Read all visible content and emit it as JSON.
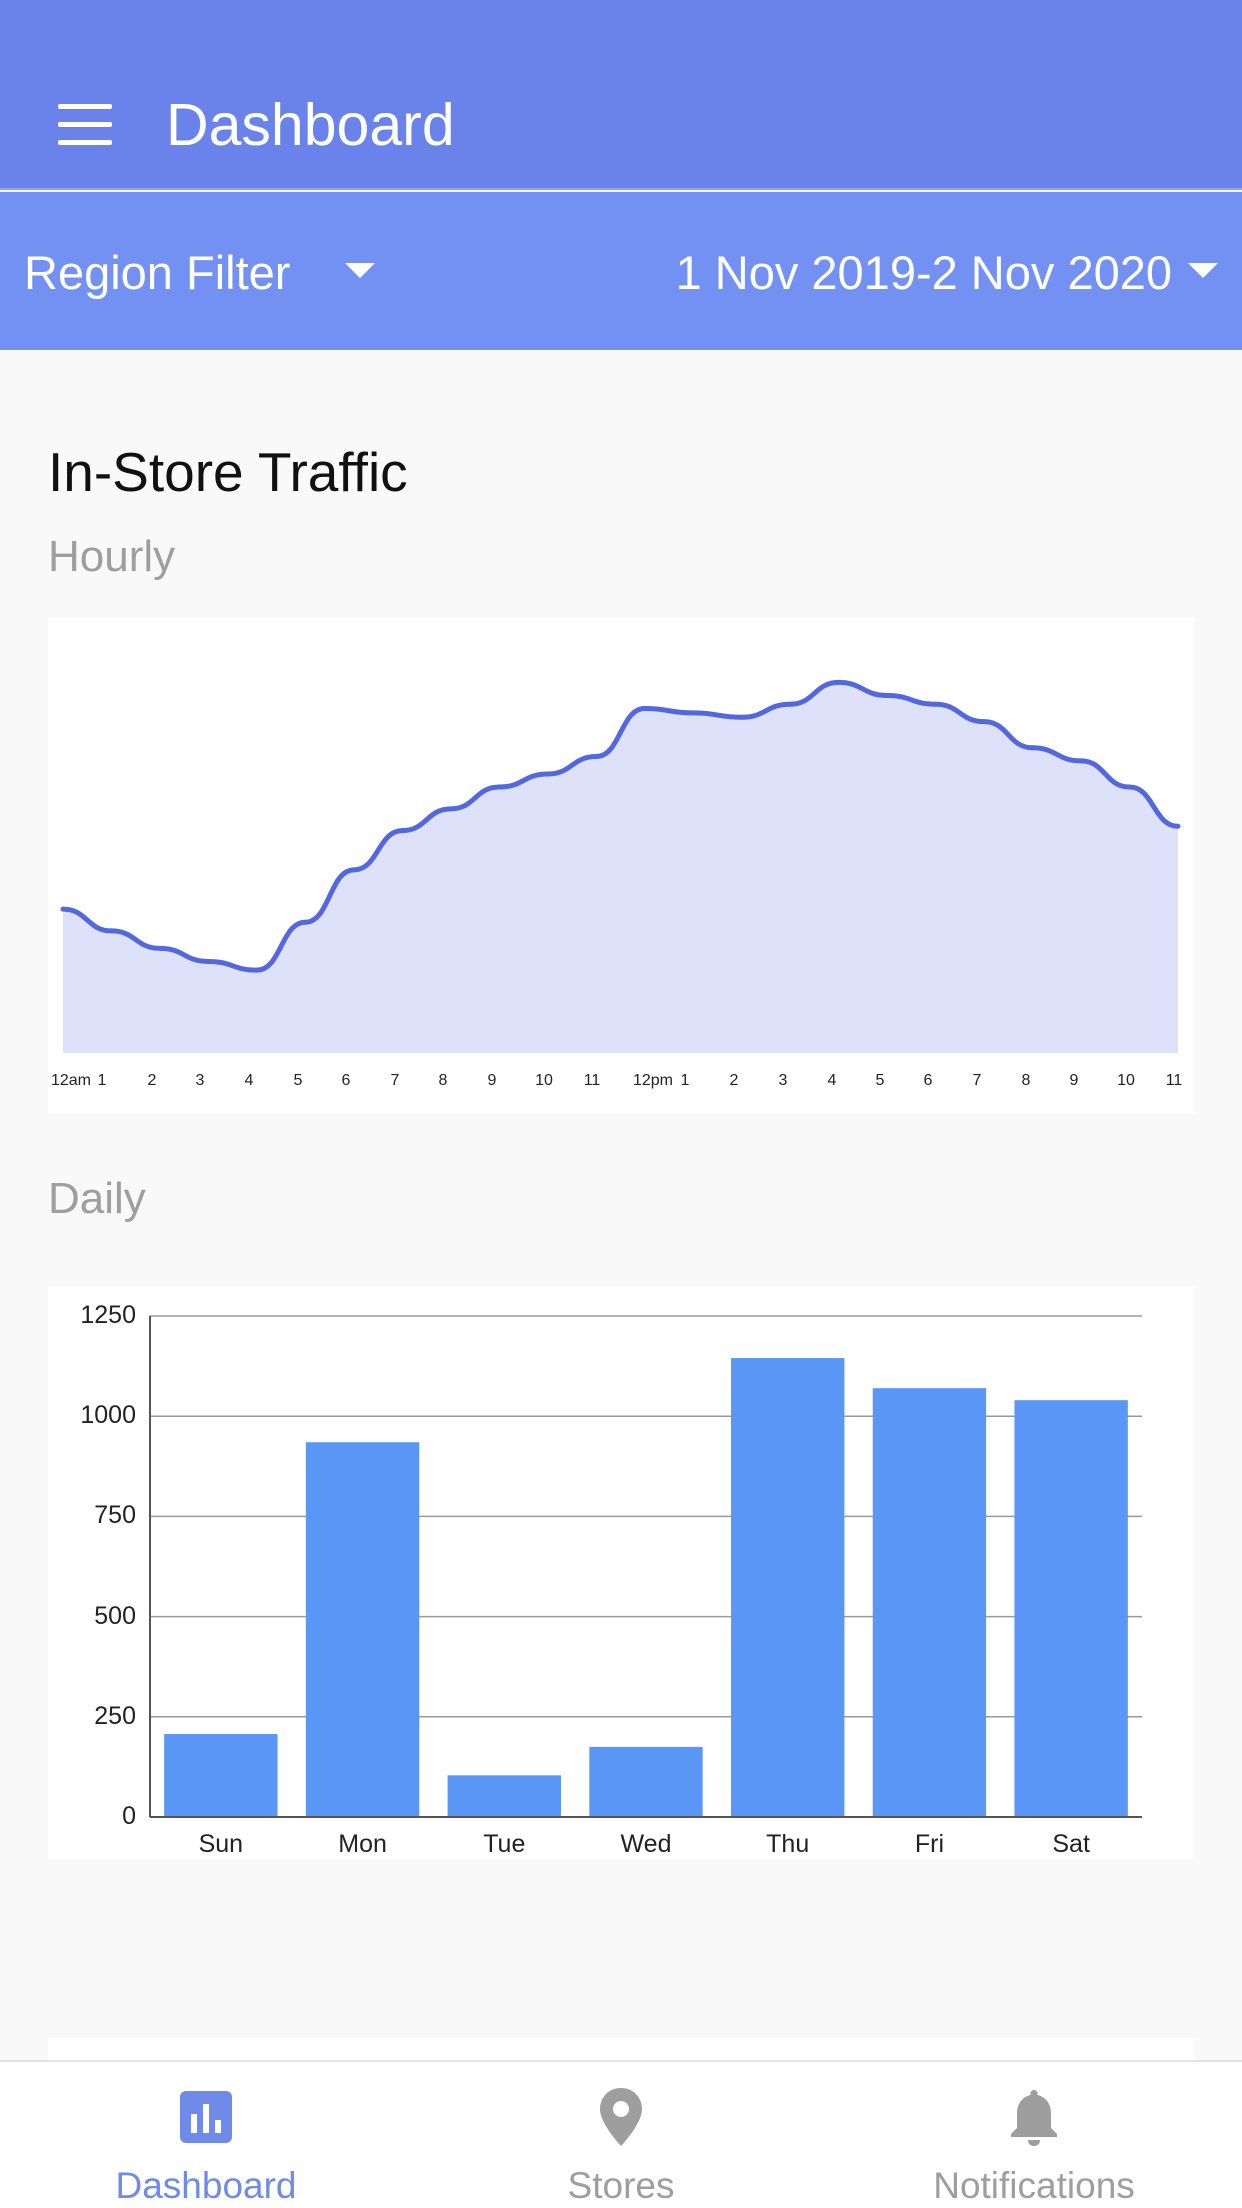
{
  "header": {
    "title": "Dashboard",
    "menu_icon": "hamburger-menu-icon",
    "background_color": "#6983eb"
  },
  "filters": {
    "region_label": "Region Filter",
    "date_range": "1 Nov 2019-2 Nov 2020",
    "background_color": "#7390f3"
  },
  "section": {
    "title": "In-Store Traffic",
    "hourly_label": "Hourly",
    "daily_label": "Daily"
  },
  "chart_data": [
    {
      "type": "area",
      "title": "Hourly",
      "x": [
        "12am",
        "1",
        "2",
        "3",
        "4",
        "5",
        "6",
        "7",
        "8",
        "9",
        "10",
        "11",
        "12pm",
        "1",
        "2",
        "3",
        "4",
        "5",
        "6",
        "7",
        "8",
        "9",
        "10",
        "11"
      ],
      "values": [
        33,
        28,
        24,
        21,
        19,
        30,
        42,
        51,
        56,
        61,
        64,
        68,
        79,
        78,
        77,
        80,
        85,
        82,
        80,
        76,
        70,
        67,
        61,
        52
      ],
      "ylim": [
        0,
        100
      ],
      "y_axis_visible": false,
      "grid": false,
      "line_color": "#5468dd",
      "fill_color": "#dde1fa"
    },
    {
      "type": "bar",
      "title": "Daily",
      "categories": [
        "Sun",
        "Mon",
        "Tue",
        "Wed",
        "Thu",
        "Fri",
        "Sat"
      ],
      "values": [
        207,
        935,
        104,
        175,
        1145,
        1070,
        1040
      ],
      "ylim": [
        0,
        1250
      ],
      "yticks": [
        "0",
        "250",
        "500",
        "750",
        "1000",
        "1250"
      ],
      "grid": true,
      "bar_color": "#5a96f5"
    }
  ],
  "bottom_nav": {
    "items": [
      {
        "label": "Dashboard",
        "icon": "bar-chart-icon",
        "active": true
      },
      {
        "label": "Stores",
        "icon": "map-pin-icon",
        "active": false
      },
      {
        "label": "Notifications",
        "icon": "bell-icon",
        "active": false
      }
    ],
    "active_color": "#6f8ae8",
    "inactive_color": "#9e9e9e"
  }
}
